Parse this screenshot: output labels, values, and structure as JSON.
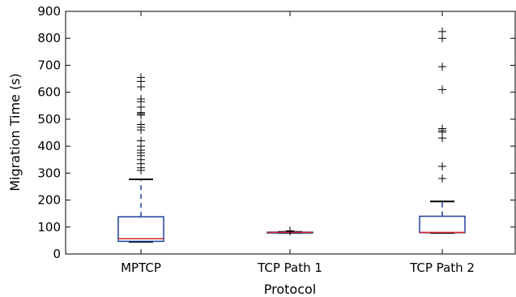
{
  "chart_data": {
    "type": "box",
    "title": "",
    "xlabel": "Protocol",
    "ylabel": "Migration Time (s)",
    "ylim": [
      0,
      900
    ],
    "yticks": [
      0,
      100,
      200,
      300,
      400,
      500,
      600,
      700,
      800,
      900
    ],
    "grid": false,
    "colors": {
      "box": "#1f3f99",
      "median": "#d62728",
      "whisker": "#1f3f99",
      "cap": "#000000",
      "flier": "#000000"
    },
    "categories": [
      "MPTCP",
      "TCP Path 1",
      "TCP Path 2"
    ],
    "boxes": [
      {
        "label": "MPTCP",
        "whislo": 45,
        "q1": 47,
        "med": 57,
        "q3": 138,
        "whishi": 277,
        "fliers": [
          655,
          640,
          620,
          575,
          565,
          545,
          525,
          520,
          515,
          480,
          470,
          460,
          420,
          400,
          385,
          375,
          365,
          350,
          335,
          320,
          310
        ]
      },
      {
        "label": "TCP Path 1",
        "whislo": 78,
        "q1": 79,
        "med": 80,
        "q3": 81,
        "whishi": 82,
        "fliers": [
          84,
          86
        ]
      },
      {
        "label": "TCP Path 2",
        "whislo": 78,
        "q1": 79,
        "med": 80,
        "q3": 140,
        "whishi": 195,
        "fliers": [
          825,
          800,
          695,
          610,
          465,
          458,
          452,
          430,
          325,
          280
        ]
      }
    ]
  }
}
